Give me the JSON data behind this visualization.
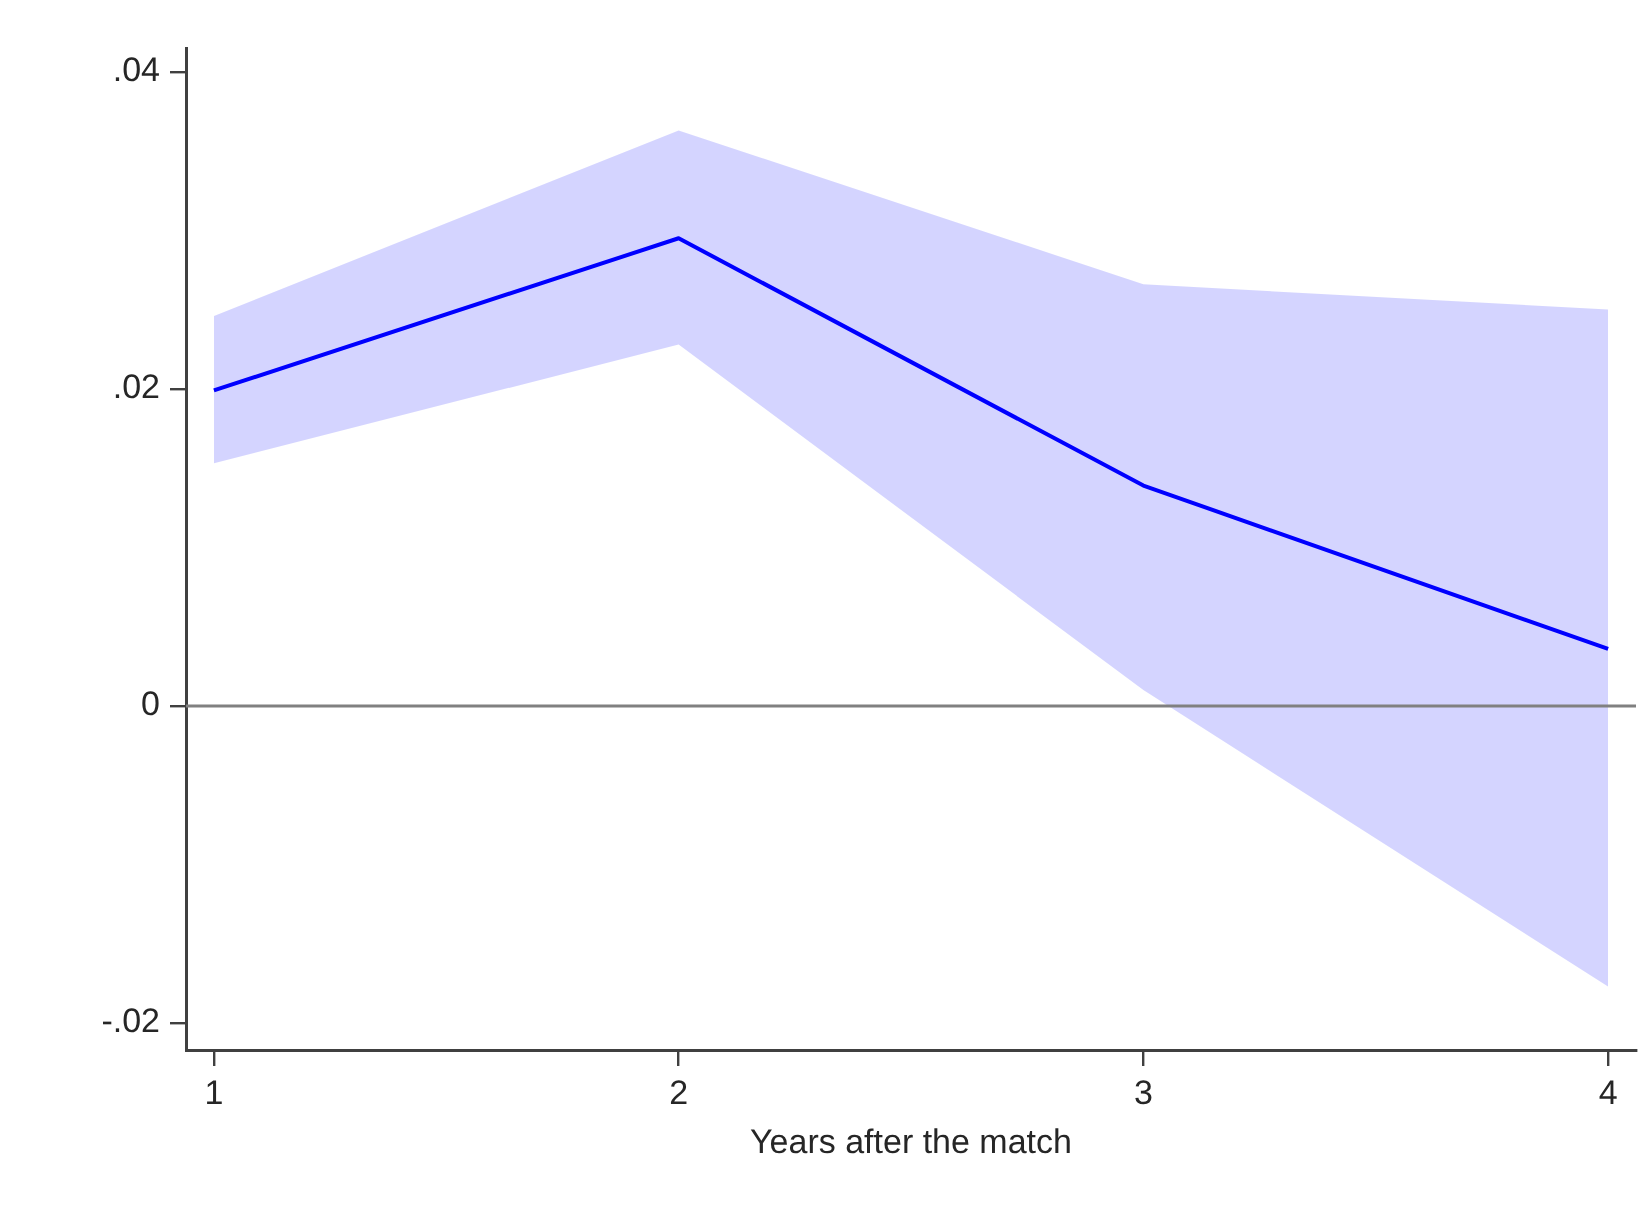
{
  "chart_data": {
    "type": "line",
    "xlabel": "Years after the match",
    "x": [
      1,
      2,
      3,
      4
    ],
    "series": [
      {
        "color": "#0000ff",
        "values": [
          0.0199,
          0.0295,
          0.0139,
          0.0036
        ],
        "lower": [
          0.0153,
          0.0228,
          0.001,
          -0.0177
        ],
        "upper": [
          0.0246,
          0.0363,
          0.0266,
          0.025
        ]
      }
    ],
    "xlim": [
      0.94,
      4.06
    ],
    "ylim": [
      -0.0217,
      0.0415
    ],
    "xticks": [
      1,
      2,
      3,
      4
    ],
    "yticks": [
      {
        "value": -0.02,
        "label": "-.02"
      },
      {
        "value": 0,
        "label": "0"
      },
      {
        "value": 0.02,
        "label": ".02"
      },
      {
        "value": 0.04,
        "label": ".04"
      }
    ],
    "ref_lines": [
      {
        "axis": "y",
        "value": 0,
        "color": "#808080"
      }
    ],
    "marker": "none",
    "line_style": "solid"
  }
}
